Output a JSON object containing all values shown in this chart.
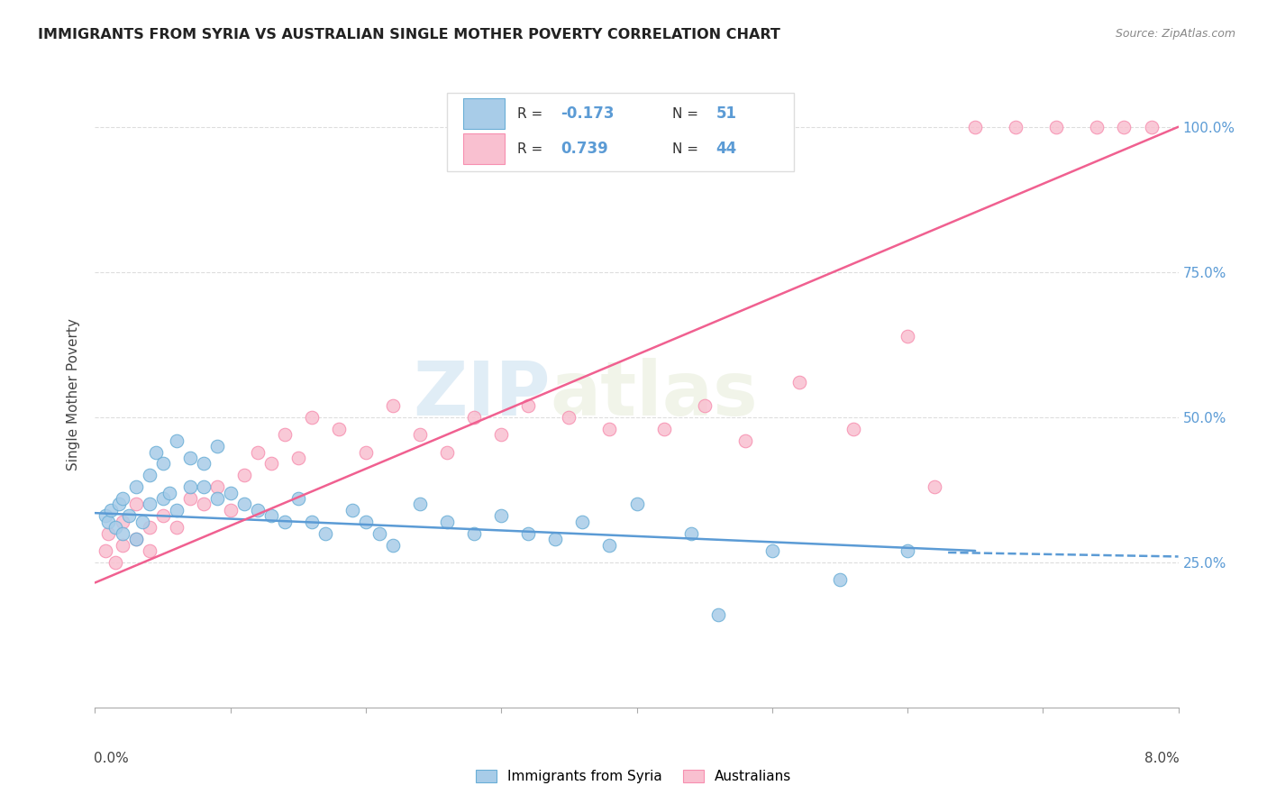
{
  "title": "IMMIGRANTS FROM SYRIA VS AUSTRALIAN SINGLE MOTHER POVERTY CORRELATION CHART",
  "source": "Source: ZipAtlas.com",
  "ylabel": "Single Mother Poverty",
  "legend_label1": "Immigrants from Syria",
  "legend_label2": "Australians",
  "blue_color": "#a8cce8",
  "blue_color_dark": "#6aaed6",
  "pink_color": "#f9c0d0",
  "pink_color_dark": "#f78fb0",
  "blue_line_color": "#5b9bd5",
  "pink_line_color": "#f06090",
  "watermark_zip": "ZIP",
  "watermark_atlas": "atlas",
  "blue_R": "-0.173",
  "blue_N": "51",
  "pink_R": "0.739",
  "pink_N": "44",
  "blue_scatter_x": [
    0.0008,
    0.001,
    0.0012,
    0.0015,
    0.0018,
    0.002,
    0.002,
    0.0025,
    0.003,
    0.003,
    0.0035,
    0.004,
    0.004,
    0.0045,
    0.005,
    0.005,
    0.0055,
    0.006,
    0.006,
    0.007,
    0.007,
    0.008,
    0.008,
    0.009,
    0.009,
    0.01,
    0.011,
    0.012,
    0.013,
    0.014,
    0.015,
    0.016,
    0.017,
    0.019,
    0.02,
    0.021,
    0.022,
    0.024,
    0.026,
    0.028,
    0.03,
    0.032,
    0.034,
    0.036,
    0.038,
    0.04,
    0.044,
    0.05,
    0.055,
    0.06,
    0.046
  ],
  "blue_scatter_y": [
    0.33,
    0.32,
    0.34,
    0.31,
    0.35,
    0.3,
    0.36,
    0.33,
    0.29,
    0.38,
    0.32,
    0.4,
    0.35,
    0.44,
    0.36,
    0.42,
    0.37,
    0.34,
    0.46,
    0.38,
    0.43,
    0.38,
    0.42,
    0.36,
    0.45,
    0.37,
    0.35,
    0.34,
    0.33,
    0.32,
    0.36,
    0.32,
    0.3,
    0.34,
    0.32,
    0.3,
    0.28,
    0.35,
    0.32,
    0.3,
    0.33,
    0.3,
    0.29,
    0.32,
    0.28,
    0.35,
    0.3,
    0.27,
    0.22,
    0.27,
    0.16
  ],
  "pink_scatter_x": [
    0.0008,
    0.001,
    0.0015,
    0.002,
    0.002,
    0.003,
    0.003,
    0.004,
    0.004,
    0.005,
    0.006,
    0.007,
    0.008,
    0.009,
    0.01,
    0.011,
    0.012,
    0.013,
    0.014,
    0.015,
    0.016,
    0.018,
    0.02,
    0.022,
    0.024,
    0.026,
    0.028,
    0.03,
    0.032,
    0.035,
    0.038,
    0.042,
    0.045,
    0.048,
    0.052,
    0.056,
    0.06,
    0.065,
    0.068,
    0.071,
    0.074,
    0.076,
    0.078,
    0.062
  ],
  "pink_scatter_y": [
    0.27,
    0.3,
    0.25,
    0.28,
    0.32,
    0.35,
    0.29,
    0.31,
    0.27,
    0.33,
    0.31,
    0.36,
    0.35,
    0.38,
    0.34,
    0.4,
    0.44,
    0.42,
    0.47,
    0.43,
    0.5,
    0.48,
    0.44,
    0.52,
    0.47,
    0.44,
    0.5,
    0.47,
    0.52,
    0.5,
    0.48,
    0.48,
    0.52,
    0.46,
    0.56,
    0.48,
    0.64,
    1.0,
    1.0,
    1.0,
    1.0,
    1.0,
    1.0,
    0.38
  ],
  "xlim": [
    0,
    0.08
  ],
  "ylim": [
    0,
    1.08
  ],
  "ytick_vals": [
    0.25,
    0.5,
    0.75,
    1.0
  ],
  "ytick_labels": [
    "25.0%",
    "50.0%",
    "75.0%",
    "100.0%"
  ],
  "blue_line_x": [
    0.0,
    0.065
  ],
  "blue_line_solid_end": 0.065,
  "blue_line_dash_start": 0.063,
  "blue_line_dash_end": 0.08,
  "pink_line_x": [
    0.0,
    0.08
  ]
}
